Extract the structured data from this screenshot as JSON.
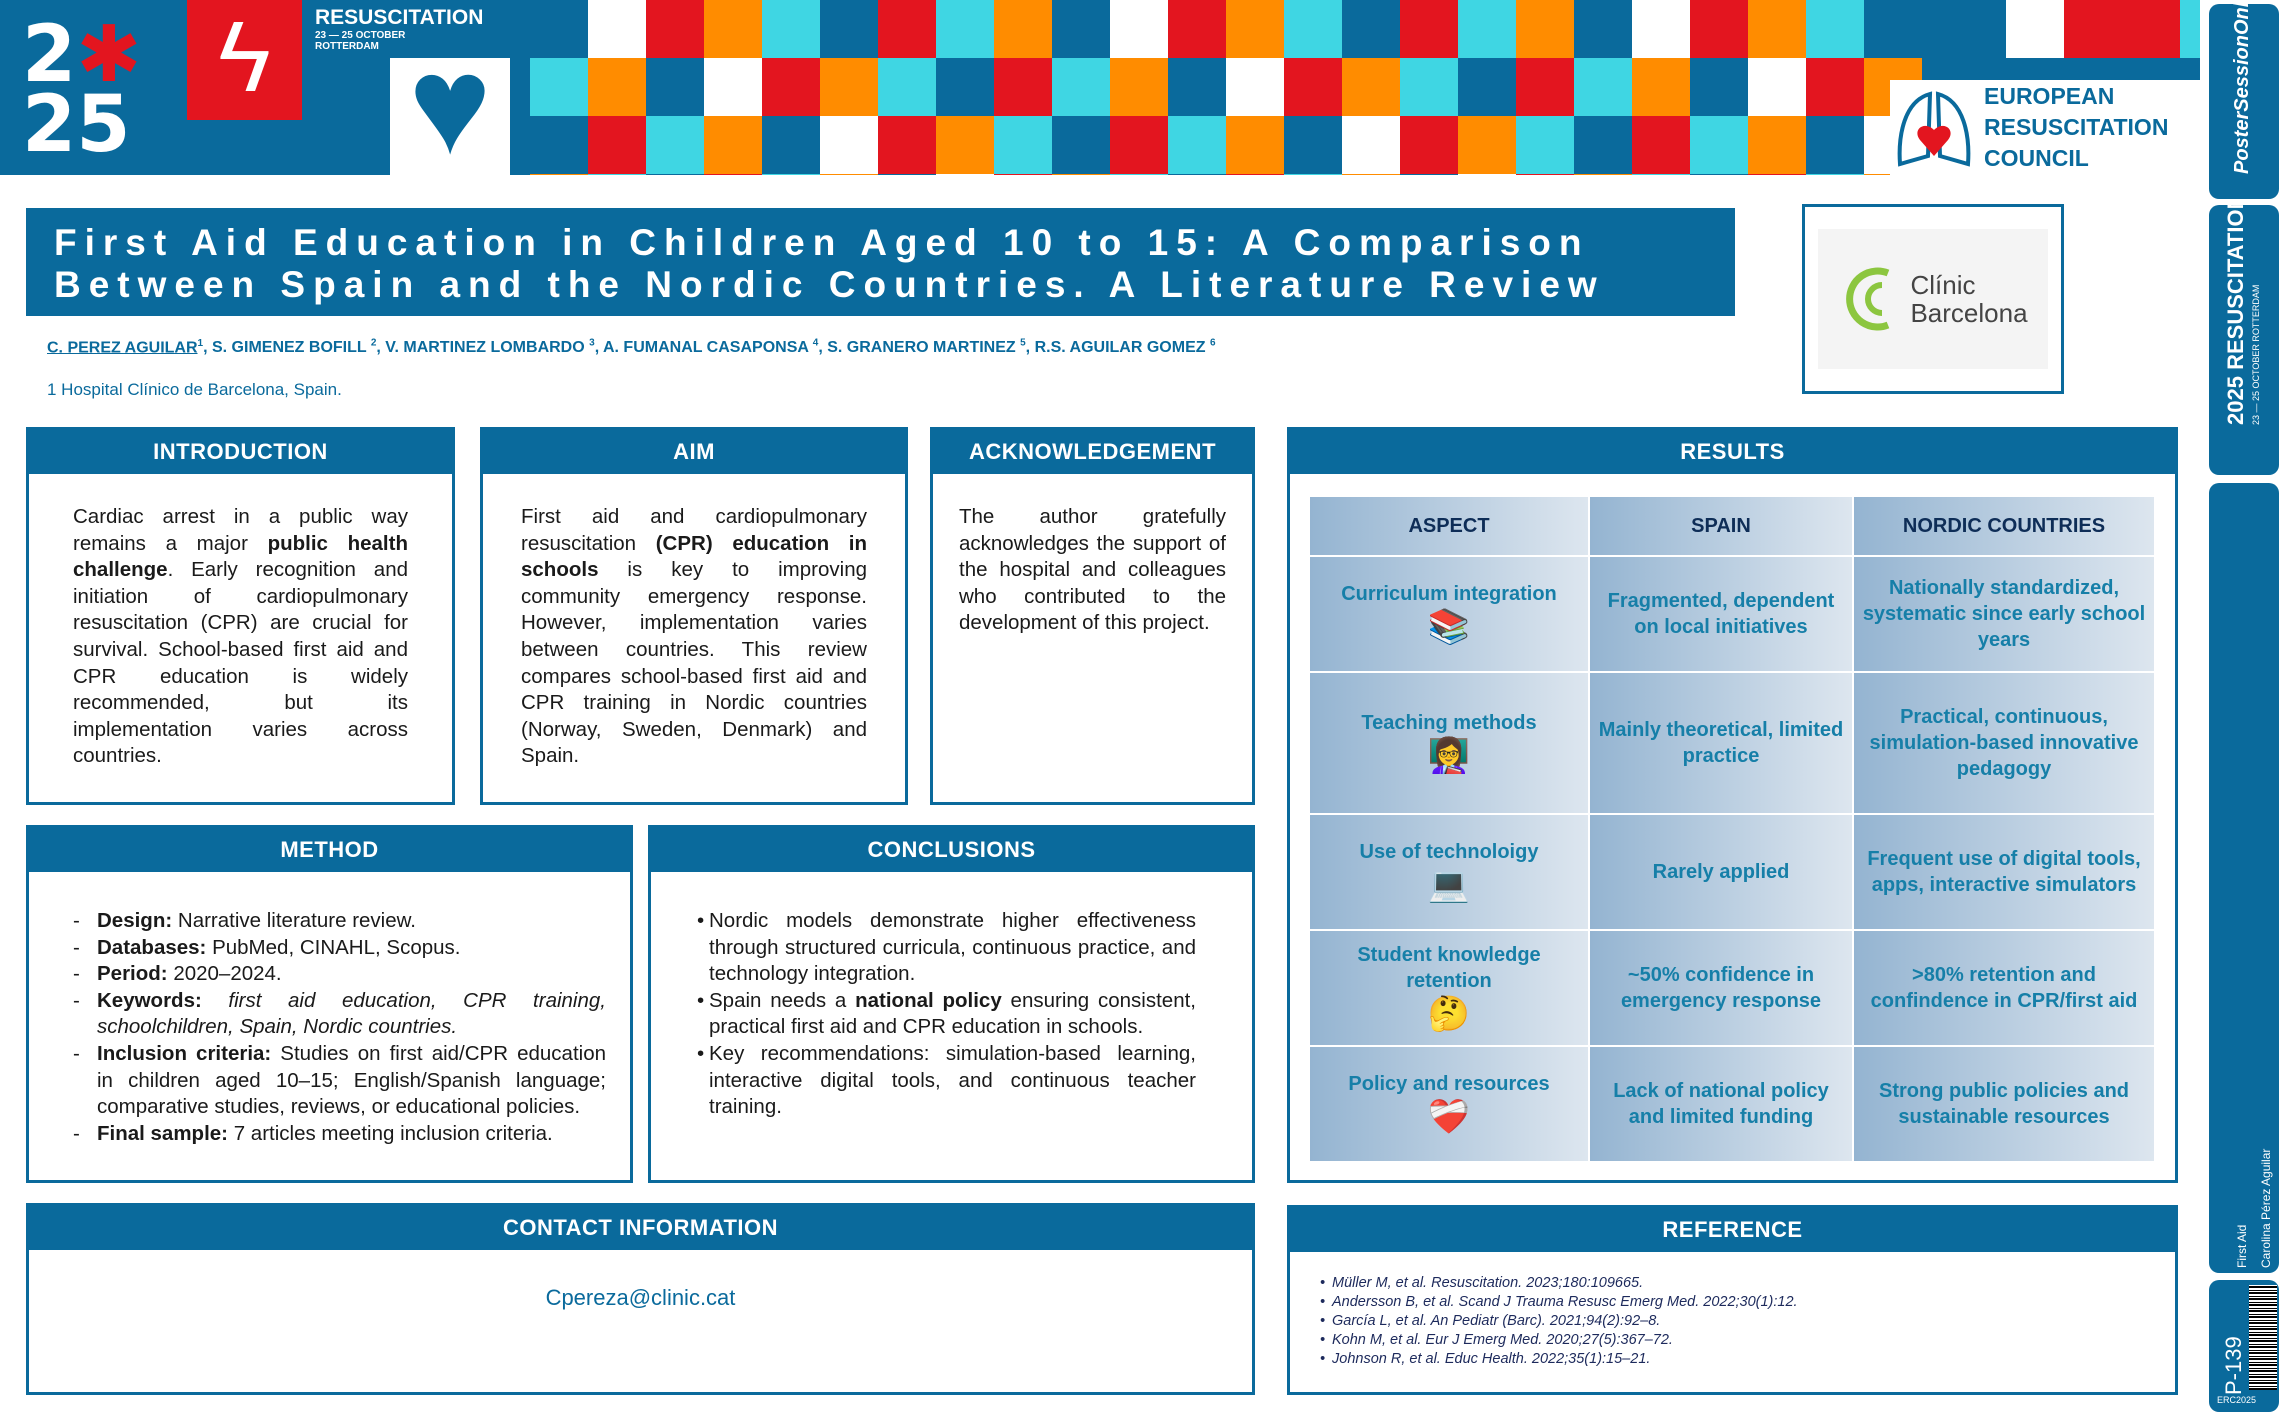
{
  "banner": {
    "year_top": "2",
    "year_bottom": "25",
    "event": "RESUSCITATION",
    "dates": "23 — 25 OCTOBER",
    "city": "ROTTERDAM",
    "org_name": [
      "EUROPEAN",
      "RESUSCITATION",
      "COUNCIL"
    ],
    "colors": {
      "blue": "#0a6a9c",
      "red": "#e3151f",
      "cyan": "#3fd6e3",
      "orange": "#ff8c00"
    }
  },
  "sidebar": {
    "poster_session": "PosterSessionOnline",
    "resus_year": "2025",
    "resus_event": "RESUSCITATION",
    "resus_dates": "23 — 25 OCTOBER",
    "resus_city": "ROTTERDAM",
    "category": "First Aid",
    "author": "Carolina Pérez Aguilar",
    "poster_id": "P-139",
    "conference_code": "ERC2025"
  },
  "title": {
    "line1": "First Aid Education in Children Aged 10 to 15: A Comparison",
    "line2": "Between Spain and the Nordic Countries. A Literature Review"
  },
  "authors": {
    "first": "C. PEREZ AGUILAR",
    "first_sup": "1",
    "rest": [
      {
        "name": ", S. GIMENEZ BOFILL ",
        "sup": "2"
      },
      {
        "name": ", V. MARTINEZ LOMBARDO ",
        "sup": "3"
      },
      {
        "name": ", A. FUMANAL CASAPONSA ",
        "sup": "4"
      },
      {
        "name": ", S. GRANERO MARTINEZ ",
        "sup": "5"
      },
      {
        "name": ", R.S. AGUILAR GOMEZ ",
        "sup": "6"
      }
    ],
    "affiliation": "1 Hospital Clínico de Barcelona, Spain."
  },
  "hospital_logo": {
    "line1": "Clínic",
    "line2": "Barcelona"
  },
  "introduction": {
    "heading": "INTRODUCTION",
    "p1": "Cardiac arrest in a public way remains a major ",
    "b1": "public health challenge",
    "p2": ". Early recognition and initiation of cardiopulmonary resuscitation (CPR) are crucial for survival. School-based first aid and CPR education is widely recommended, but its implementation varies across countries."
  },
  "aim": {
    "heading": "AIM",
    "p1": "First aid and cardiopulmonary resuscitation ",
    "b1": "(CPR) education in schools",
    "p2": " is key to improving community emergency response. However, implementation varies between countries. This review compares school-based first aid and CPR training in Nordic countries (Norway, Sweden, Denmark) and Spain."
  },
  "acknowledgement": {
    "heading": "ACKNOWLEDGEMENT",
    "text": "The author gratefully acknowledges the support of the hospital and colleagues who contributed to the development of this project."
  },
  "method": {
    "heading": "METHOD",
    "items": [
      {
        "label": "Design:",
        "text": " Narrative literature review.",
        "italic": false
      },
      {
        "label": "Databases:",
        "text": " PubMed, CINAHL, Scopus.",
        "italic": false
      },
      {
        "label": "Period:",
        "text": " 2020–2024.",
        "italic": false
      },
      {
        "label": "Keywords:",
        "text": " first aid education, CPR training, schoolchildren, Spain, Nordic countries.",
        "italic": true
      },
      {
        "label": "Inclusion criteria:",
        "text": " Studies on first aid/CPR education in children aged 10–15; English/Spanish language; comparative studies, reviews, or educational policies.",
        "italic": false
      },
      {
        "label": "Final sample:",
        "text": " 7 articles meeting inclusion criteria.",
        "italic": false
      }
    ]
  },
  "conclusions": {
    "heading": "CONCLUSIONS",
    "items": [
      {
        "pre": "Nordic models demonstrate higher effectiveness through structured curricula, continuous practice, and technology integration.",
        "bold": "",
        "post": ""
      },
      {
        "pre": "Spain needs a ",
        "bold": "national policy",
        "post": " ensuring consistent, practical first aid and CPR education in schools."
      },
      {
        "pre": "Key recommendations: simulation-based learning, interactive digital tools, and continuous teacher training.",
        "bold": "",
        "post": ""
      }
    ]
  },
  "results": {
    "heading": "RESULTS",
    "columns": [
      "ASPECT",
      "SPAIN",
      "NORDIC COUNTRIES"
    ],
    "rows": [
      {
        "aspect": "Curriculum integration",
        "icon": "📚",
        "spain": "Fragmented, dependent on local initiatives",
        "nordic": "Nationally standardized, systematic since early school years"
      },
      {
        "aspect": "Teaching methods",
        "icon": "👩‍🏫",
        "spain": "Mainly theoretical, limited practice",
        "nordic": "Practical, continuous, simulation-based innovative pedagogy"
      },
      {
        "aspect": "Use of technoloigy",
        "icon": "💻",
        "spain": "Rarely applied",
        "nordic": "Frequent use of digital tools, apps, interactive simulators"
      },
      {
        "aspect": "Student knowledge retention",
        "icon": "🤔",
        "spain": "~50% confidence in emergency response",
        "nordic": ">80% retention and confindence in CPR/first aid"
      },
      {
        "aspect": "Policy and resources",
        "icon": "❤️‍🩹",
        "spain": "Lack of national policy and limited funding",
        "nordic": "Strong public policies and sustainable resources"
      }
    ]
  },
  "contact": {
    "heading": "CONTACT INFORMATION",
    "email": "Cpereza@clinic.cat"
  },
  "references": {
    "heading": "REFERENCE",
    "items": [
      "Müller M, et al. Resuscitation. 2023;180:109665.",
      "Andersson B, et al. Scand J Trauma Resusc Emerg Med. 2022;30(1):12.",
      "García L, et al. An Pediatr (Barc). 2021;94(2):92–8.",
      "Kohn M, et al. Eur J Emerg Med. 2020;27(5):367–72.",
      "Johnson R, et al. Educ Health. 2022;35(1):15–21."
    ]
  }
}
